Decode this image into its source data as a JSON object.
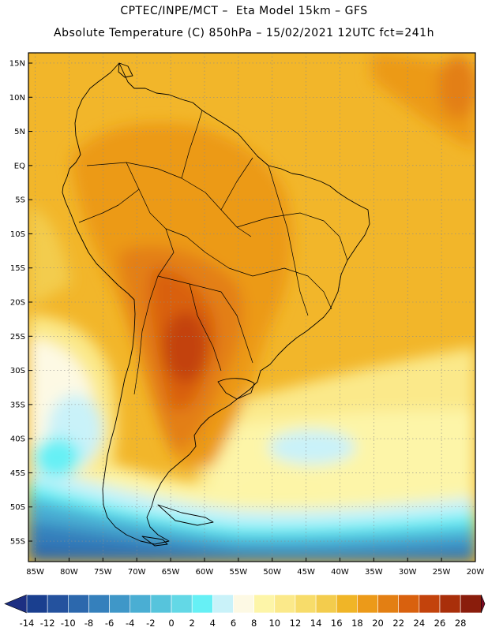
{
  "header": {
    "line1": "CPTEC/INPE/MCT –  Eta Model 15km – GFS",
    "line2": "Absolute Temperature (C) 850hPa – 15/02/2021 12UTC fct=241h"
  },
  "map": {
    "lat_labels": [
      "15N",
      "10N",
      "5N",
      "EQ",
      "5S",
      "10S",
      "15S",
      "20S",
      "25S",
      "30S",
      "35S",
      "40S",
      "45S",
      "50S",
      "55S"
    ],
    "lat_values": [
      15,
      10,
      5,
      0,
      -5,
      -10,
      -15,
      -20,
      -25,
      -30,
      -35,
      -40,
      -45,
      -50,
      -55
    ],
    "lon_labels": [
      "85W",
      "80W",
      "75W",
      "70W",
      "65W",
      "60W",
      "55W",
      "50W",
      "45W",
      "40W",
      "35W",
      "30W",
      "25W",
      "20W"
    ],
    "lon_values": [
      -85,
      -80,
      -75,
      -70,
      -65,
      -60,
      -55,
      -50,
      -45,
      -40,
      -35,
      -30,
      -25,
      -20
    ],
    "lat_range": [
      -58,
      16.5
    ],
    "lon_range": [
      -86,
      -20
    ]
  },
  "colorbar": {
    "labels": [
      "-14",
      "-12",
      "-10",
      "-8",
      "-6",
      "-4",
      "-2",
      "0",
      "2",
      "4",
      "6",
      "8",
      "10",
      "12",
      "14",
      "16",
      "18",
      "20",
      "22",
      "24",
      "26",
      "28"
    ],
    "colors": [
      "#1a3f8f",
      "#24529e",
      "#2c68ad",
      "#3580bc",
      "#3f97c8",
      "#4aaed3",
      "#56c4dc",
      "#63d8e6",
      "#66f0f5",
      "#c9f2f9",
      "#fdf9e4",
      "#fdf5a8",
      "#fbe98a",
      "#f7dc6a",
      "#f3cc4d",
      "#f0b527",
      "#ec9a19",
      "#e37f13",
      "#d9610e",
      "#c3430c",
      "#a92f0a",
      "#8a1d0c"
    ],
    "under_color": "#1d2f82",
    "over_color": "#7a0a22"
  }
}
